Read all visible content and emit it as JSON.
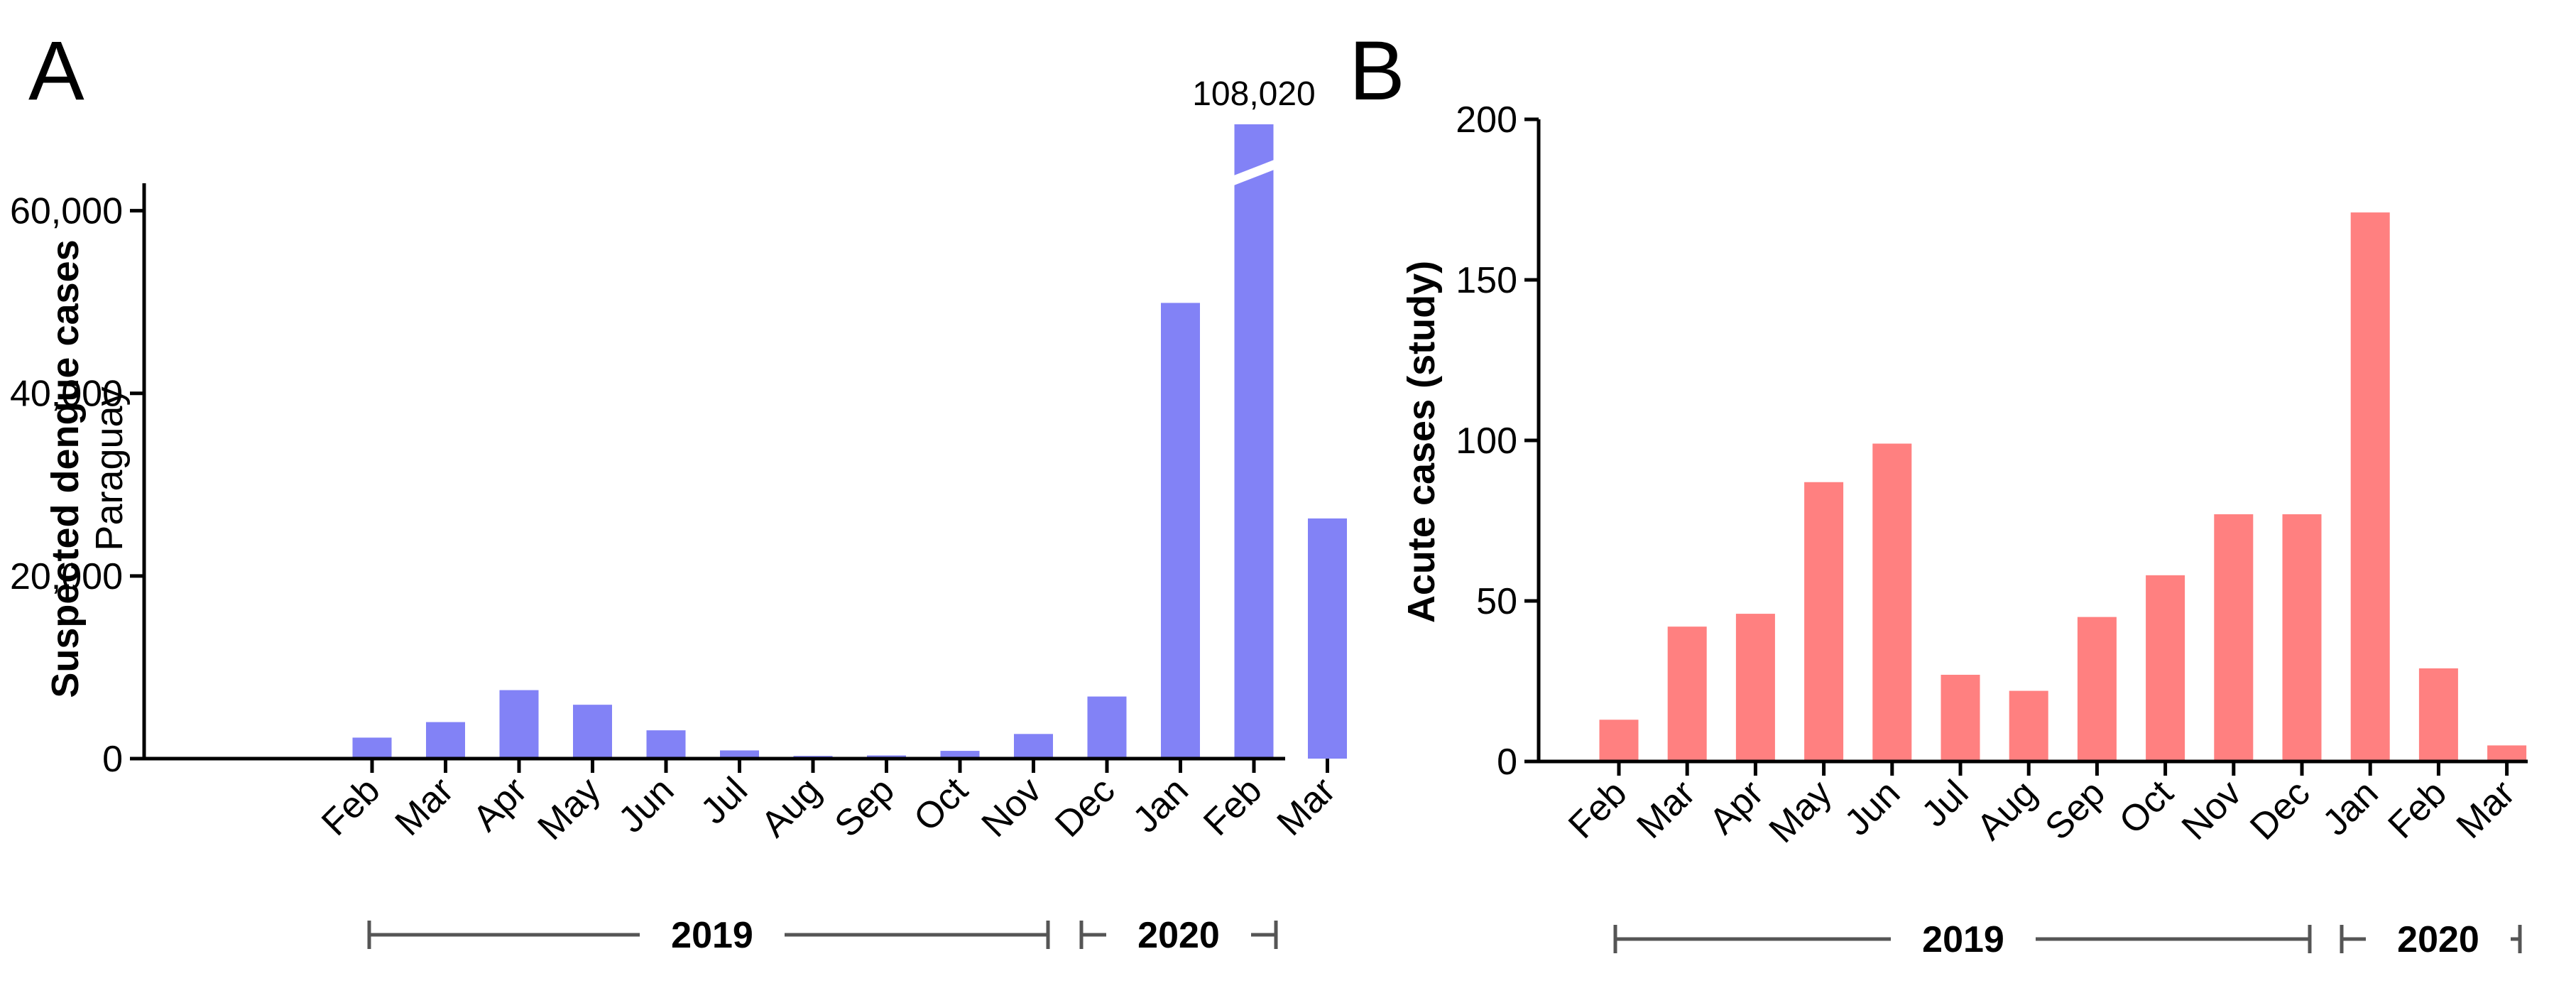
{
  "chart_data": [
    {
      "panel": "A",
      "type": "bar",
      "categories": [
        "Feb",
        "Mar",
        "Apr",
        "May",
        "Jun",
        "Jul",
        "Aug",
        "Sep",
        "Oct",
        "Nov",
        "Dec",
        "Jan",
        "Feb",
        "Mar"
      ],
      "values": [
        2300,
        4000,
        7500,
        5900,
        3100,
        900,
        300,
        350,
        850,
        2700,
        6800,
        49900,
        108020,
        26300
      ],
      "ylabel": "Suspected dengue cases",
      "ylabel_sub": "Paraguay",
      "ylim": [
        0,
        63000
      ],
      "yticks": [
        0,
        20000,
        40000,
        60000
      ],
      "ytick_labels": [
        "0",
        "20,000",
        "40,000",
        "60,000"
      ],
      "axis_break": {
        "category_index": 12,
        "label": "108,020"
      },
      "color": "#8282f6",
      "year_groups": [
        {
          "label": "2019",
          "from": 0,
          "to": 10
        },
        {
          "label": "2020",
          "from": 11,
          "to": 13
        }
      ],
      "grid": false,
      "legend": "none"
    },
    {
      "panel": "B",
      "type": "bar",
      "categories": [
        "Feb",
        "Mar",
        "Apr",
        "May",
        "Jun",
        "Jul",
        "Aug",
        "Sep",
        "Oct",
        "Nov",
        "Dec",
        "Jan",
        "Feb",
        "Mar"
      ],
      "values": [
        13,
        42,
        46,
        87,
        99,
        27,
        22,
        45,
        58,
        77,
        77,
        171,
        29,
        5
      ],
      "ylabel": "Acute cases (study)",
      "ylim": [
        0,
        200
      ],
      "yticks": [
        0,
        50,
        100,
        150,
        200
      ],
      "ytick_labels": [
        "0",
        "50",
        "100",
        "150",
        "200"
      ],
      "color": "#ff8080",
      "year_groups": [
        {
          "label": "2019",
          "from": 0,
          "to": 10
        },
        {
          "label": "2020",
          "from": 11,
          "to": 13
        }
      ],
      "grid": false,
      "legend": "none"
    }
  ]
}
